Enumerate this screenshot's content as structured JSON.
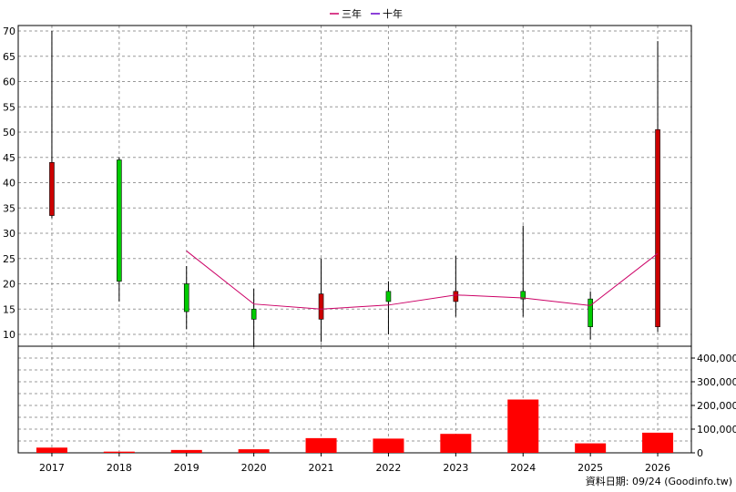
{
  "legend": [
    {
      "label": "三年",
      "color": "#cc0066"
    },
    {
      "label": "十年",
      "color": "#6600cc"
    }
  ],
  "footer": "資料日期: 09/24  (Goodinfo.tw)",
  "colors": {
    "up": "#cc0000",
    "down": "#00cc00",
    "volume": "#ff0000",
    "ma": "#cc0066"
  },
  "chart_data": [
    {
      "type": "candlestick",
      "categories": [
        "2017",
        "2018",
        "2019",
        "2020",
        "2021",
        "2022",
        "2023",
        "2024",
        "2025",
        "2026"
      ],
      "ohlc": [
        {
          "open": 33.5,
          "high": 70.0,
          "low": 33.0,
          "close": 44.0
        },
        {
          "open": 44.5,
          "high": 45.0,
          "low": 16.5,
          "close": 20.5
        },
        {
          "open": 20.0,
          "high": 23.5,
          "low": 11.0,
          "close": 14.5
        },
        {
          "open": 15.0,
          "high": 19.0,
          "low": 7.5,
          "close": 13.0
        },
        {
          "open": 13.0,
          "high": 25.0,
          "low": 8.5,
          "close": 18.0
        },
        {
          "open": 18.5,
          "high": 20.5,
          "low": 10.0,
          "close": 16.5
        },
        {
          "open": 16.5,
          "high": 25.5,
          "low": 13.5,
          "close": 18.5
        },
        {
          "open": 18.5,
          "high": 31.5,
          "low": 13.5,
          "close": 17.0
        },
        {
          "open": 17.0,
          "high": 18.5,
          "low": 9.0,
          "close": 11.5
        },
        {
          "open": 11.5,
          "high": 68.0,
          "low": 10.5,
          "close": 50.5
        }
      ],
      "series": [
        {
          "name": "三年",
          "values": [
            null,
            null,
            26.5,
            16.0,
            15.0,
            15.8,
            17.8,
            17.2,
            15.7,
            26.0
          ]
        }
      ],
      "ylim": [
        10,
        70
      ],
      "yticks": [
        10,
        15,
        20,
        25,
        30,
        35,
        40,
        45,
        50,
        55,
        60,
        65,
        70
      ],
      "grid": true,
      "legend_position": "top"
    },
    {
      "type": "bar",
      "categories": [
        "2017",
        "2018",
        "2019",
        "2020",
        "2021",
        "2022",
        "2023",
        "2024",
        "2025",
        "2026"
      ],
      "values": [
        22000,
        5000,
        12000,
        15000,
        62000,
        60000,
        80000,
        225000,
        40000,
        85000
      ],
      "ylim": [
        0,
        450000
      ],
      "ytick_labels": [
        {
          "value": 0,
          "label": "0"
        },
        {
          "value": 100000,
          "label": "100,000"
        },
        {
          "value": 200000,
          "label": "200,000"
        },
        {
          "value": 300000,
          "label": "300,000"
        },
        {
          "value": 400000,
          "label": "400,000"
        }
      ],
      "grid": true
    }
  ]
}
